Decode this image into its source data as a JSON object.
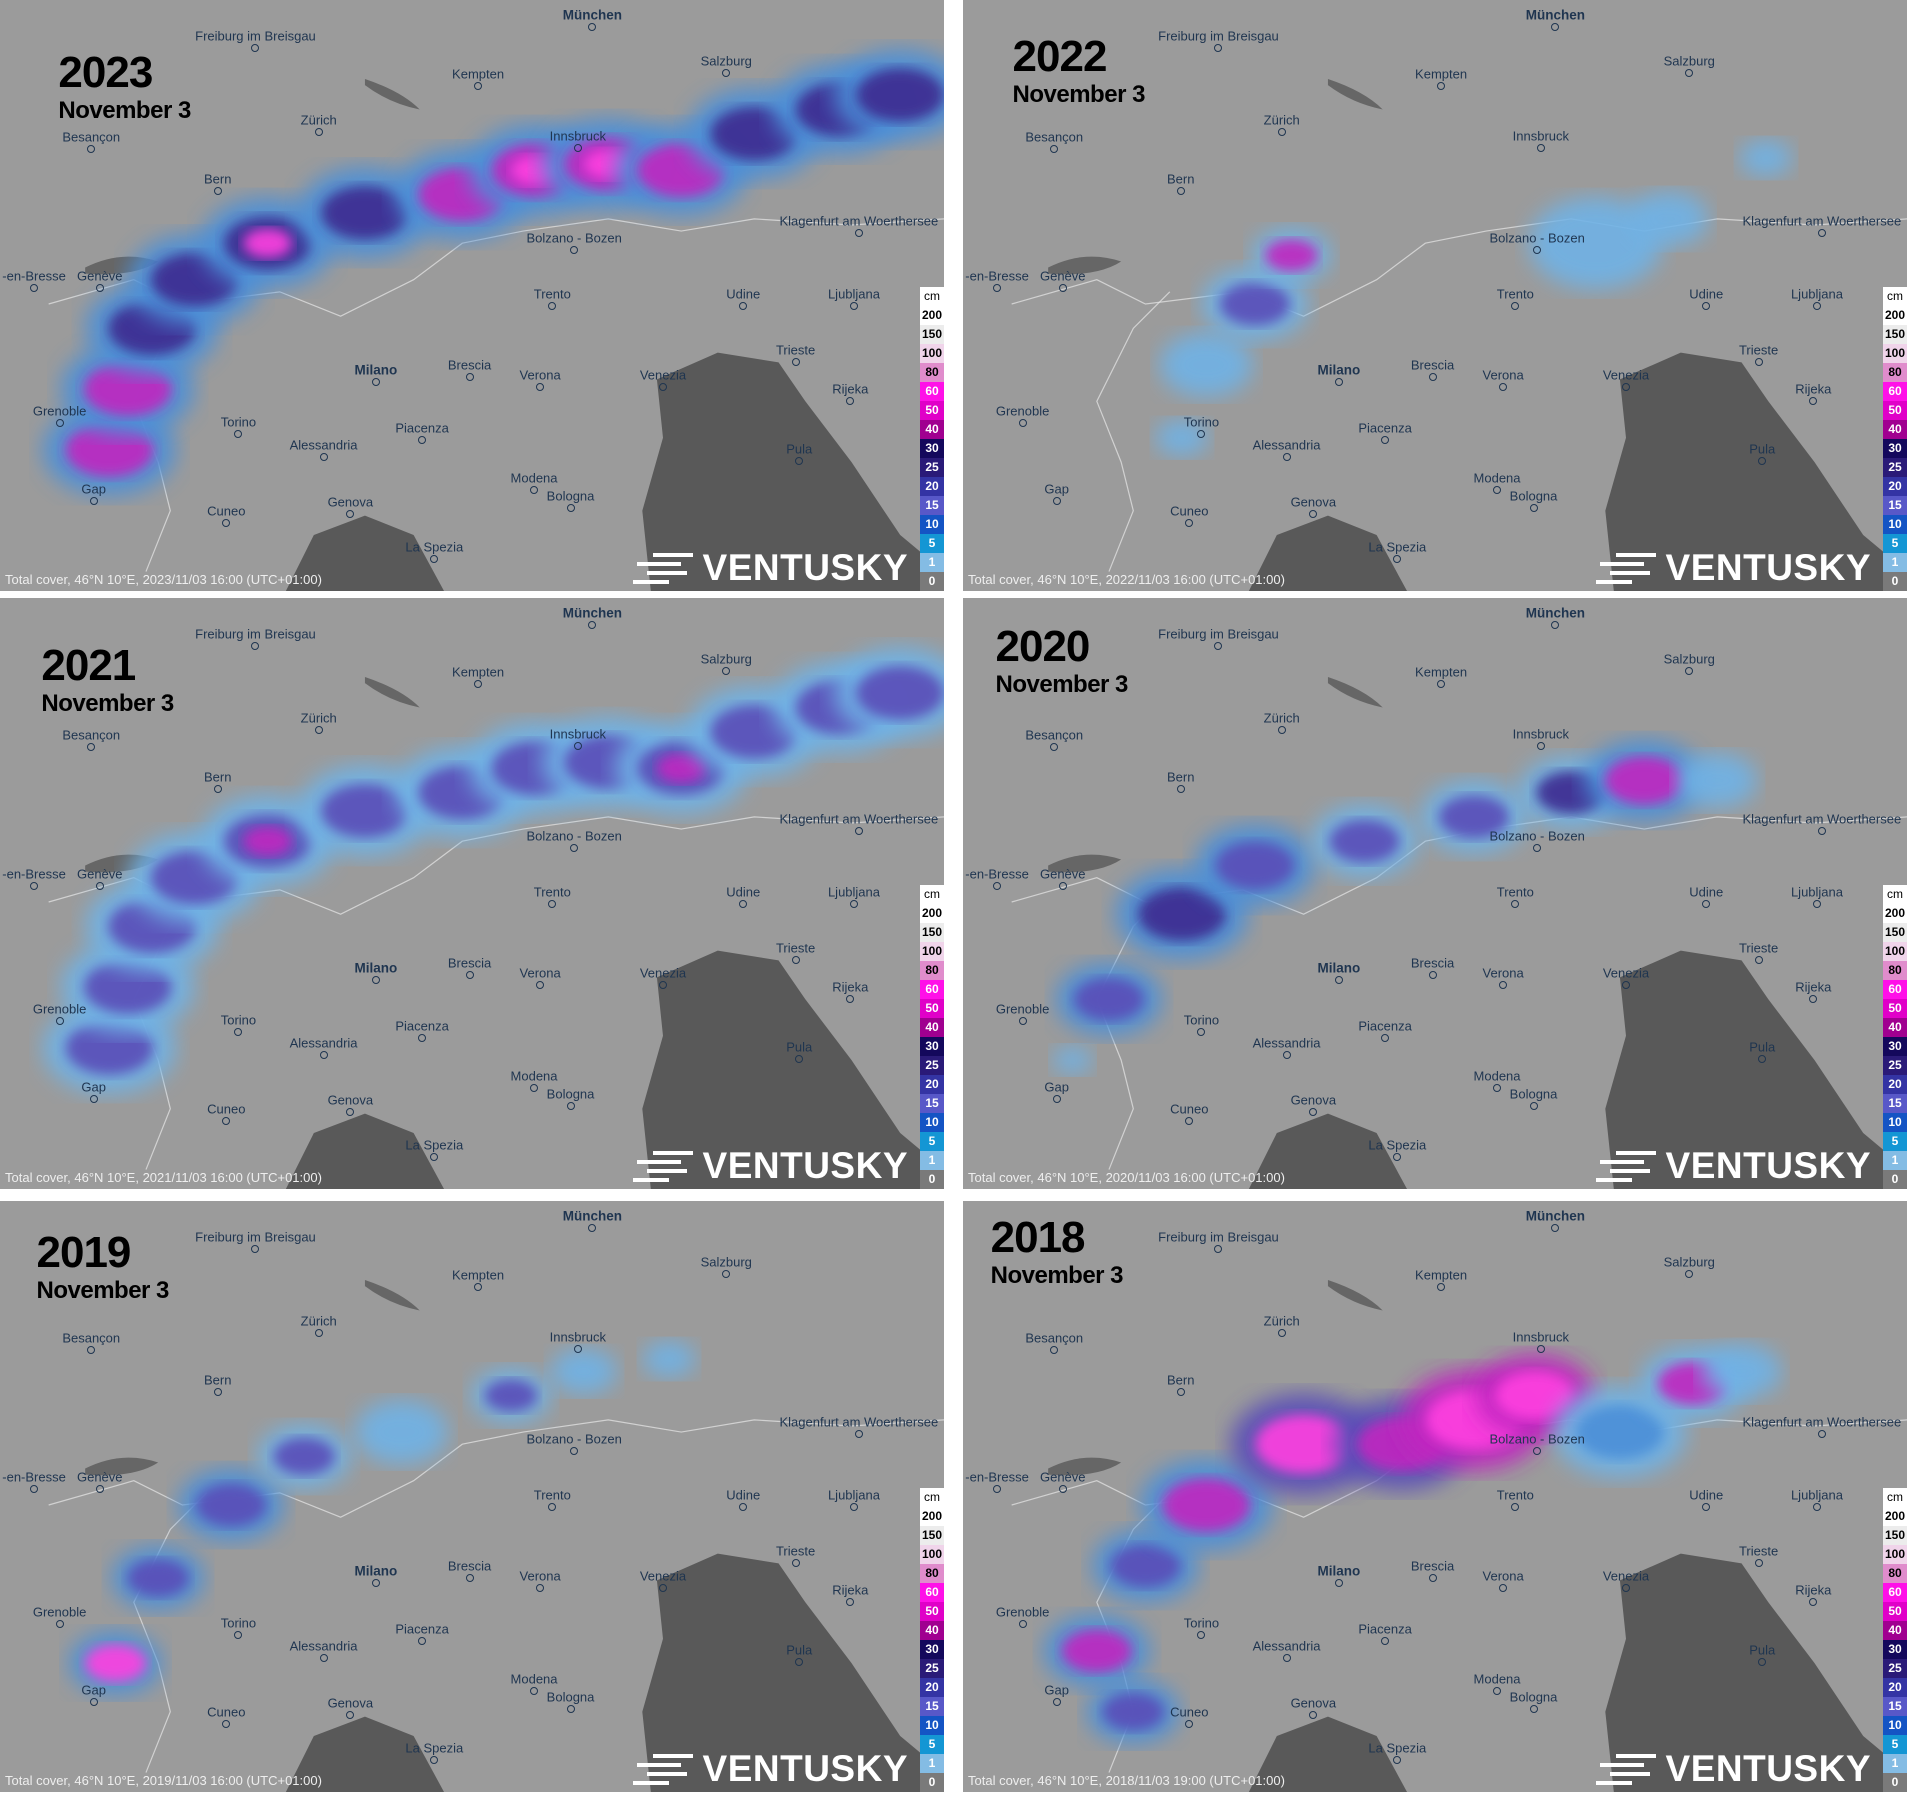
{
  "panels": [
    {
      "year": "2023",
      "date": "November 3",
      "footer": "Total cover, 46°N 10°E, 2023/11/03 16:00 (UTC+01:00)"
    },
    {
      "year": "2022",
      "date": "November 3",
      "footer": "Total cover, 46°N 10°E, 2022/11/03 16:00 (UTC+01:00)"
    },
    {
      "year": "2021",
      "date": "November 3",
      "footer": "Total cover, 46°N 10°E, 2021/11/03 16:00 (UTC+01:00)"
    },
    {
      "year": "2020",
      "date": "November 3",
      "footer": "Total cover, 46°N 10°E, 2020/11/03 16:00 (UTC+01:00)"
    },
    {
      "year": "2019",
      "date": "November 3",
      "footer": "Total cover, 46°N 10°E, 2019/11/03 16:00 (UTC+01:00)"
    },
    {
      "year": "2018",
      "date": "November 3",
      "footer": "Total cover, 46°N 10°E, 2018/11/03 19:00 (UTC+01:00)"
    }
  ],
  "cities": [
    "München",
    "Freiburg im Breisgau",
    "Salzburg",
    "Kempten",
    "Zürich",
    "Besançon",
    "Innsbruck",
    "Bern",
    "Klagenfurt am Woerthersee",
    "Bolzano - Bozen",
    "Genève",
    "-en-Bresse",
    "Trento",
    "Udine",
    "Ljubljana",
    "Milano",
    "Brescia",
    "Verona",
    "Venezia",
    "Trieste",
    "Rijeka",
    "Grenoble",
    "Torino",
    "Piacenza",
    "Alessandria",
    "Pula",
    "Modena",
    "Bologna",
    "Gap",
    "Cuneo",
    "Genova",
    "La Spezia"
  ],
  "legend": {
    "unit": "cm",
    "items": [
      {
        "label": "200",
        "color": "#ffffff"
      },
      {
        "label": "150",
        "color": "#ececec"
      },
      {
        "label": "100",
        "color": "#f0d4ea"
      },
      {
        "label": "80",
        "color": "#e08ccc"
      },
      {
        "label": "60",
        "color": "#ff10e8"
      },
      {
        "label": "50",
        "color": "#e000c8"
      },
      {
        "label": "40",
        "color": "#a00090"
      },
      {
        "label": "30",
        "color": "#14085c"
      },
      {
        "label": "25",
        "color": "#2a1a78"
      },
      {
        "label": "20",
        "color": "#3434a4"
      },
      {
        "label": "15",
        "color": "#5858c8"
      },
      {
        "label": "10",
        "color": "#1454c4"
      },
      {
        "label": "5",
        "color": "#1496d4"
      },
      {
        "label": "1",
        "color": "#84bce4"
      },
      {
        "label": "0",
        "color": "#7a7a7a"
      }
    ]
  },
  "logo_text": "VENTUSKY"
}
